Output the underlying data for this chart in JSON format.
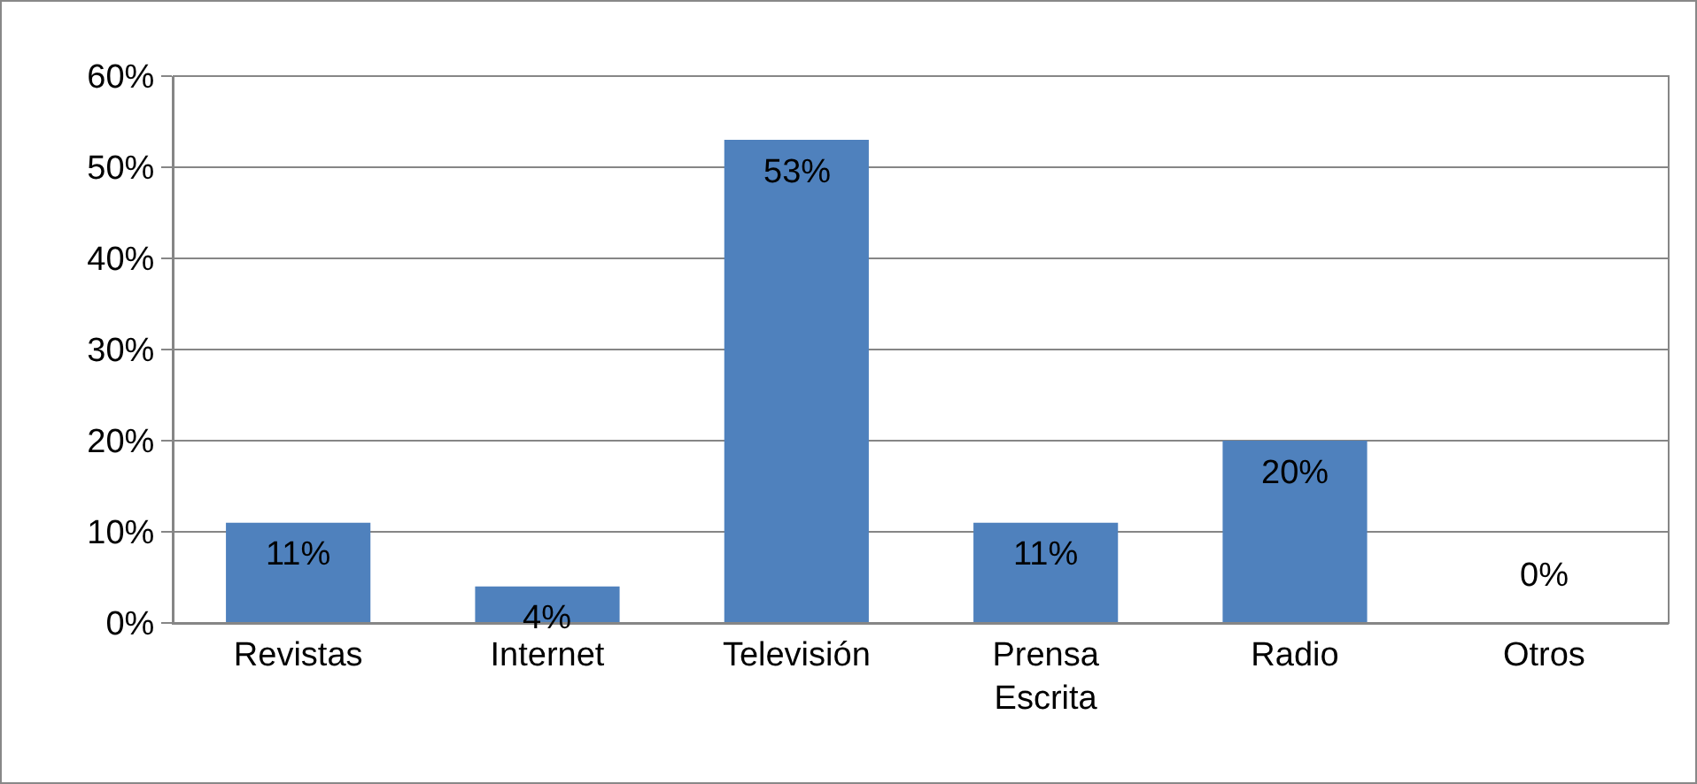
{
  "chart_data": {
    "type": "bar",
    "categories": [
      "Revistas",
      "Internet",
      "Televisión",
      "Prensa Escrita",
      "Radio",
      "Otros"
    ],
    "values": [
      11,
      4,
      53,
      11,
      20,
      0
    ],
    "value_labels": [
      "11%",
      "4%",
      "53%",
      "11%",
      "20%",
      "0%"
    ],
    "color": "#4f81bd",
    "ylim": [
      0,
      60
    ],
    "yticks": [
      {
        "value": 0,
        "label": "0%"
      },
      {
        "value": 10,
        "label": "10%"
      },
      {
        "value": 20,
        "label": "20%"
      },
      {
        "value": 30,
        "label": "30%"
      },
      {
        "value": 40,
        "label": "40%"
      },
      {
        "value": 50,
        "label": "50%"
      },
      {
        "value": 60,
        "label": "60%"
      }
    ],
    "grid": "y",
    "legend": false
  }
}
